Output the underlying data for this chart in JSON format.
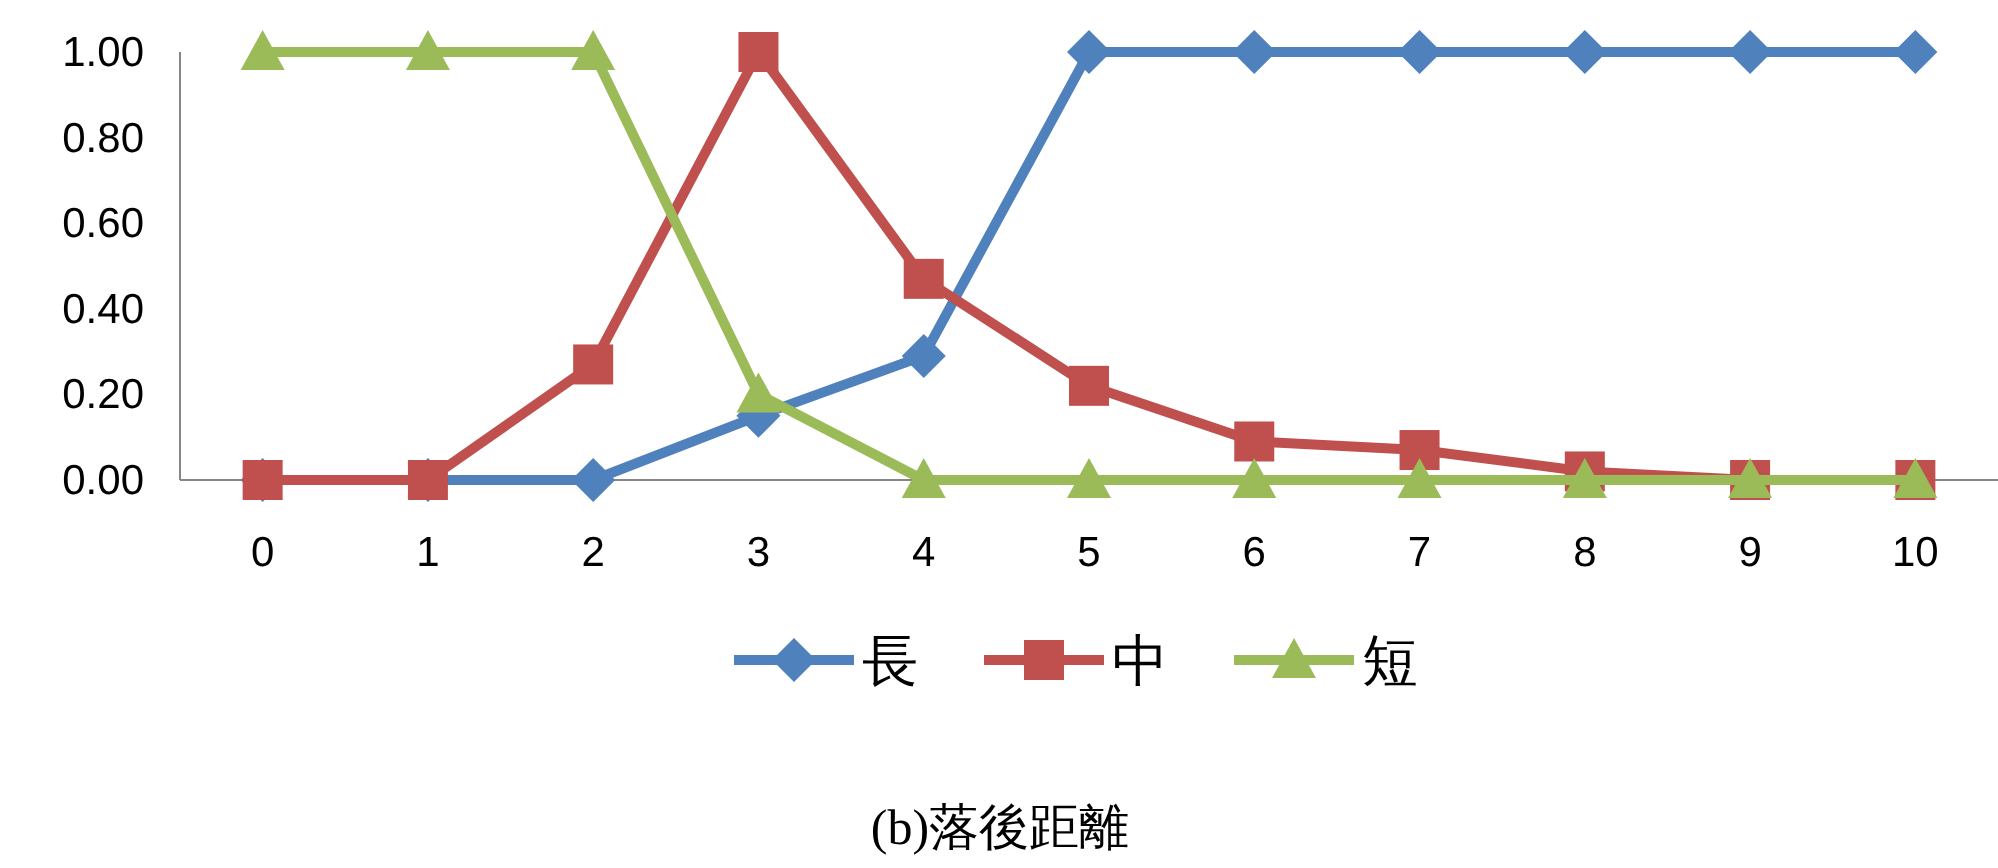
{
  "chart_data": {
    "type": "line",
    "title": "(b)落後距離",
    "categories": [
      "0",
      "1",
      "2",
      "3",
      "4",
      "5",
      "6",
      "7",
      "8",
      "9",
      "10"
    ],
    "series": [
      {
        "name": "長",
        "color": "#4f81bd",
        "marker": "diamond",
        "values": [
          0,
          0,
          0,
          0.15,
          0.29,
          1,
          1,
          1,
          1,
          1,
          1
        ]
      },
      {
        "name": "中",
        "color": "#c0504d",
        "marker": "square",
        "values": [
          0,
          0,
          0.27,
          1,
          0.47,
          0.22,
          0.09,
          0.07,
          0.02,
          0,
          0
        ]
      },
      {
        "name": "短",
        "color": "#9bbb59",
        "marker": "triangle",
        "values": [
          1,
          1,
          1,
          0.2,
          0,
          0,
          0,
          0,
          0,
          0,
          0
        ]
      }
    ],
    "ylim": [
      0,
      1
    ],
    "yticks": [
      {
        "value": 0,
        "label": "0.00"
      },
      {
        "value": 0.2,
        "label": "0.20"
      },
      {
        "value": 0.4,
        "label": "0.40"
      },
      {
        "value": 0.6,
        "label": "0.60"
      },
      {
        "value": 0.8,
        "label": "0.80"
      },
      {
        "value": 1,
        "label": "1.00"
      }
    ],
    "legend": "bottom"
  }
}
